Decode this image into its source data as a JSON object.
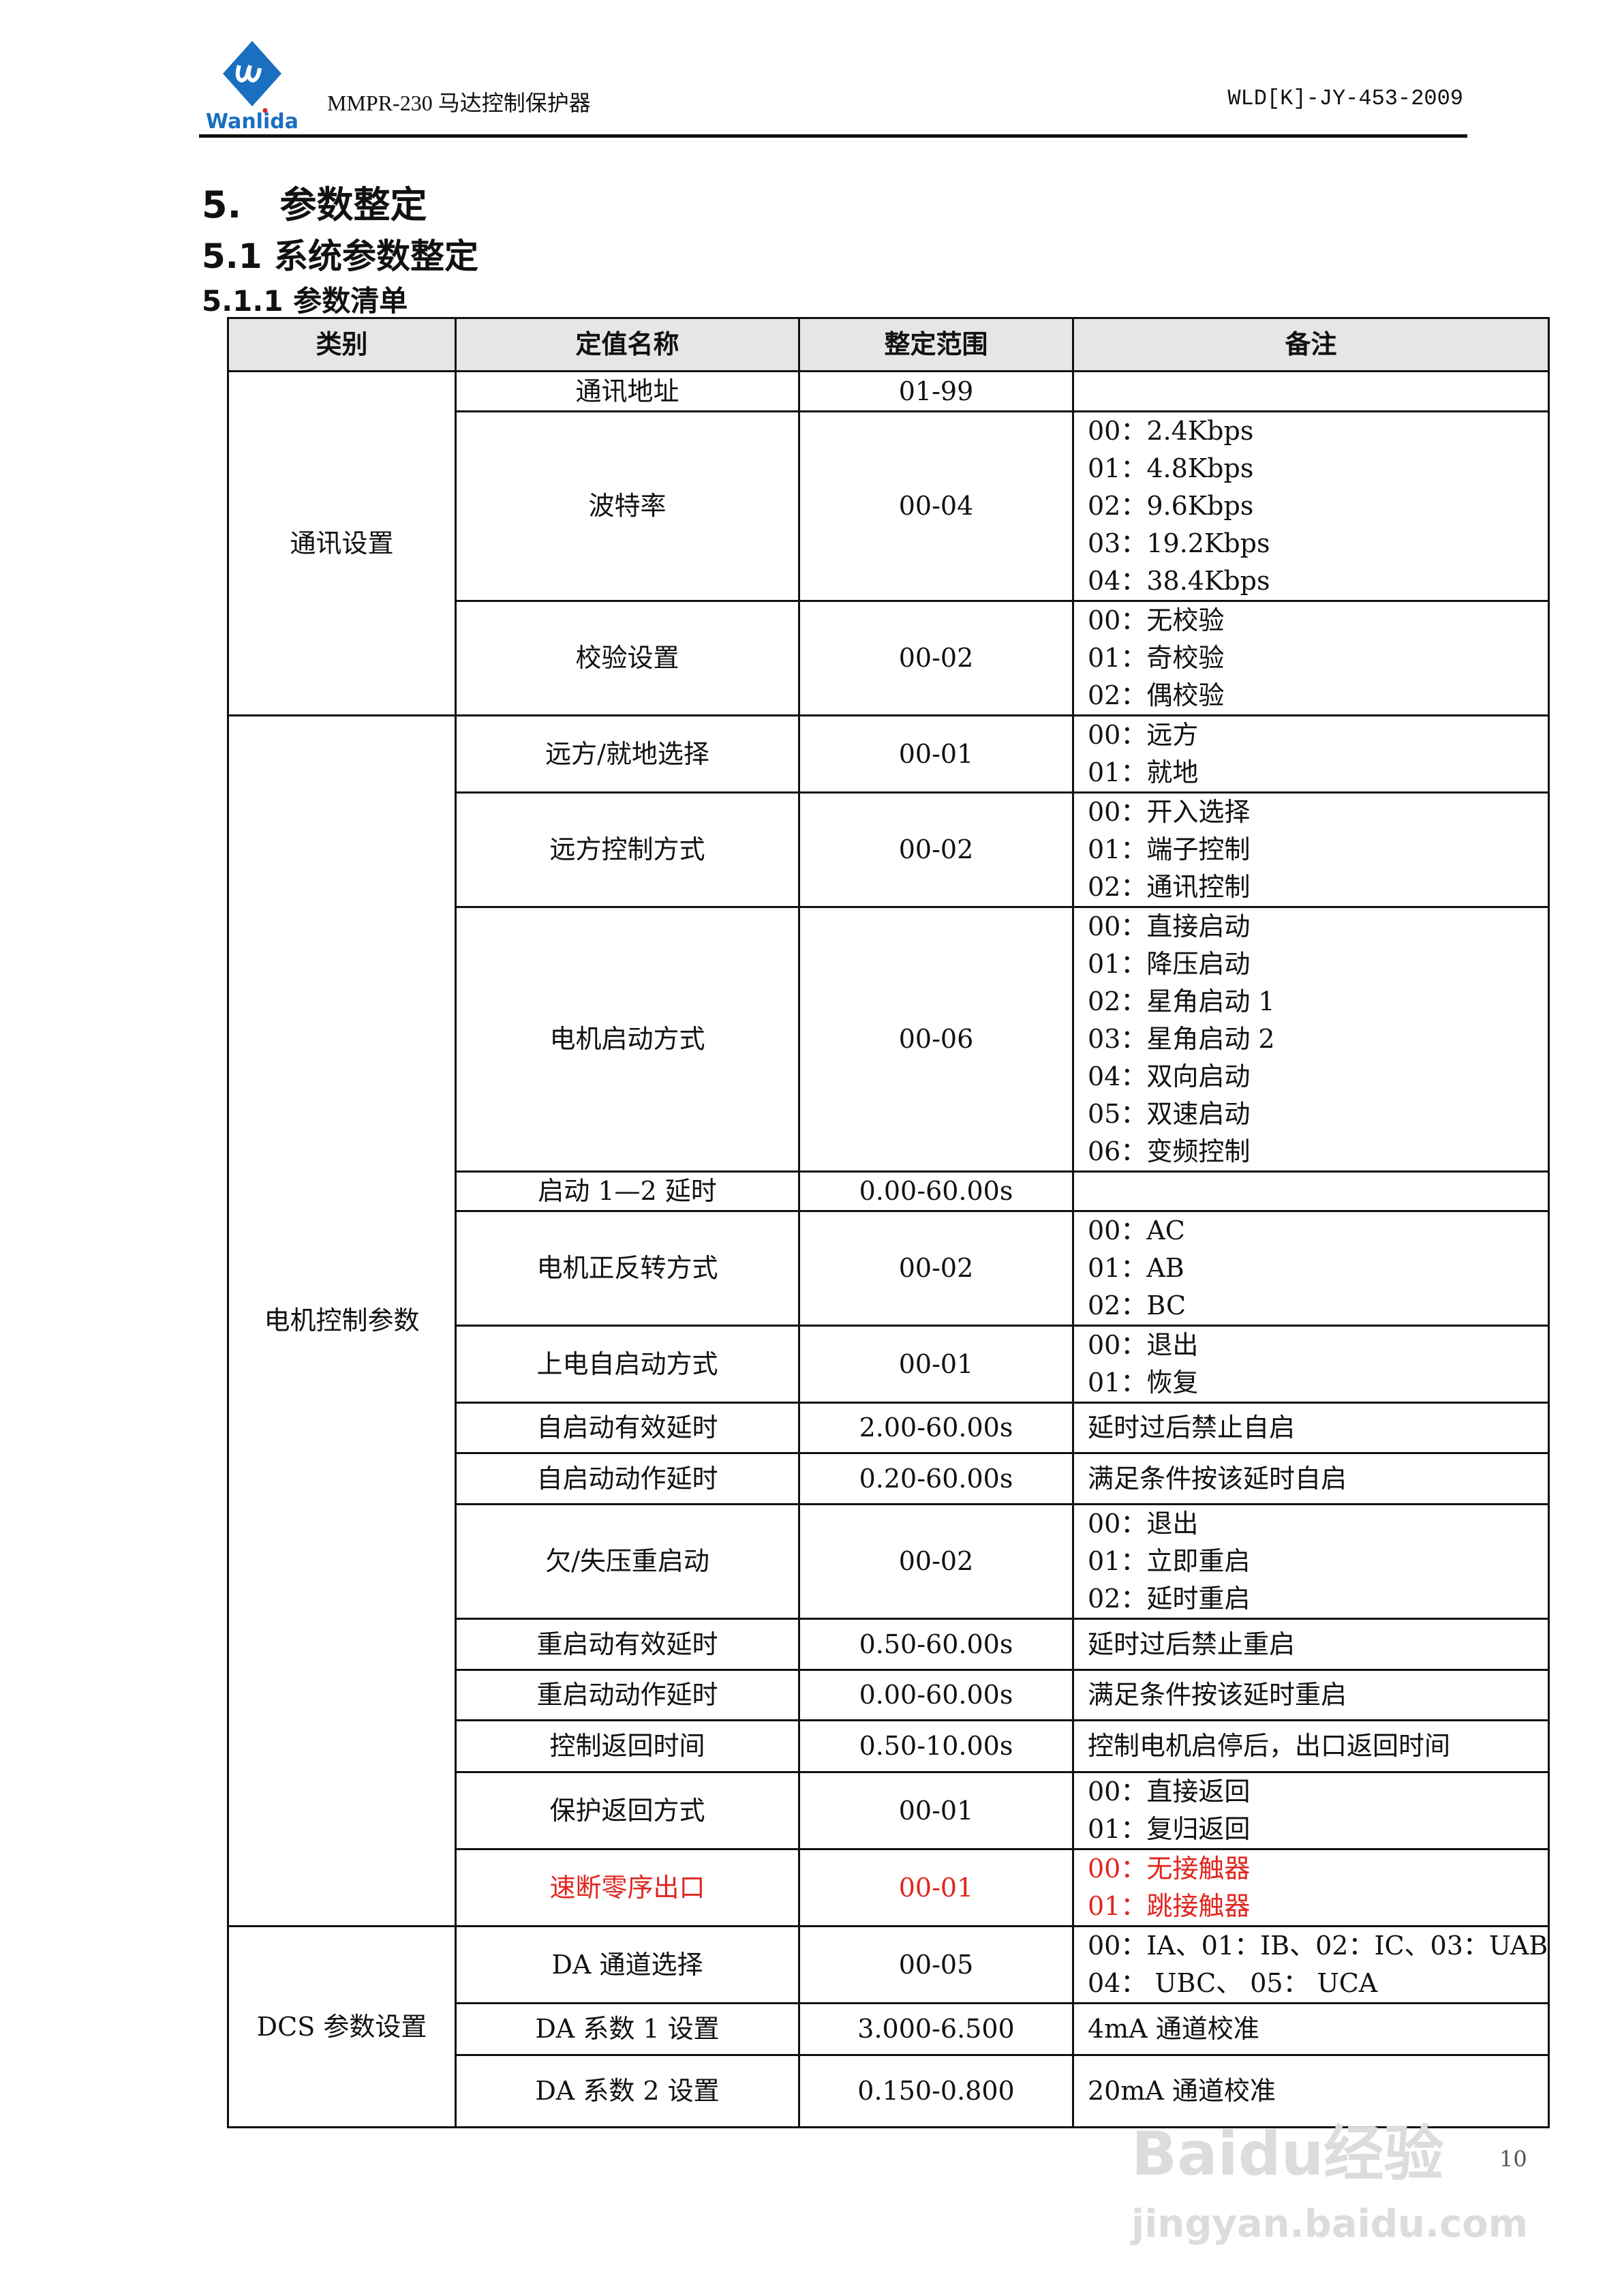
{
  "header": {
    "logo_text": "Wanlida",
    "doc_title": "MMPR-230 马达控制保护器",
    "doc_code": "WLD[K]-JY-453-2009",
    "brand_color": "#1a6fc0"
  },
  "headings": {
    "h1": "5.   参数整定",
    "h2": "5.1 系统参数整定",
    "h3": "5.1.1 参数清单"
  },
  "table": {
    "columns": [
      "类别",
      "定值名称",
      "整定范围",
      "备注"
    ],
    "groups": [
      {
        "category": "通讯设置",
        "rows": [
          {
            "name": "通讯地址",
            "range": "01-99",
            "remarks": []
          },
          {
            "name": "波特率",
            "range": "00-04",
            "remarks": [
              "00：2.4Kbps",
              "01：4.8Kbps",
              "02：9.6Kbps",
              "03：19.2Kbps",
              "04：38.4Kbps"
            ]
          },
          {
            "name": "校验设置",
            "range": "00-02",
            "remarks": [
              "00：无校验",
              "01：奇校验",
              "02：偶校验"
            ]
          }
        ]
      },
      {
        "category": "电机控制参数",
        "rows": [
          {
            "name": "远方/就地选择",
            "range": "00-01",
            "remarks": [
              "00：远方",
              "01：就地"
            ]
          },
          {
            "name": "远方控制方式",
            "range": "00-02",
            "remarks": [
              "00：开入选择",
              "01：端子控制",
              "02：通讯控制"
            ]
          },
          {
            "name": "电机启动方式",
            "range": "00-06",
            "remarks": [
              "00：直接启动",
              "01：降压启动",
              "02：星角启动 1",
              "03：星角启动 2",
              "04：双向启动",
              "05：双速启动",
              "06：变频控制"
            ]
          },
          {
            "name": "启动 1—2 延时",
            "range": "0.00-60.00s",
            "remarks": []
          },
          {
            "name": "电机正反转方式",
            "range": "00-02",
            "remarks": [
              "00：AC",
              "01：AB",
              "02：BC"
            ]
          },
          {
            "name": "上电自启动方式",
            "range": "00-01",
            "remarks": [
              "00：退出",
              "01：恢复"
            ]
          },
          {
            "name": "自启动有效延时",
            "range": "2.00-60.00s",
            "remarks": [
              "延时过后禁止自启"
            ]
          },
          {
            "name": "自启动动作延时",
            "range": "0.20-60.00s",
            "remarks": [
              "满足条件按该延时自启"
            ]
          },
          {
            "name": "欠/失压重启动",
            "range": "00-02",
            "remarks": [
              "00：退出",
              "01：立即重启",
              "02：延时重启"
            ]
          },
          {
            "name": "重启动有效延时",
            "range": "0.50-60.00s",
            "remarks": [
              "延时过后禁止重启"
            ]
          },
          {
            "name": "重启动动作延时",
            "range": "0.00-60.00s",
            "remarks": [
              "满足条件按该延时重启"
            ]
          },
          {
            "name": "控制返回时间",
            "range": "0.50-10.00s",
            "remarks": [
              "控制电机启停后，出口返回时间"
            ]
          },
          {
            "name": "保护返回方式",
            "range": "00-01",
            "remarks": [
              "00：直接返回",
              "01：复归返回"
            ]
          },
          {
            "name": "速断零序出口",
            "range": "00-01",
            "remarks": [
              "00：无接触器",
              "01：跳接触器"
            ],
            "highlight": "#e0261f"
          }
        ]
      },
      {
        "category": "DCS 参数设置",
        "rows": [
          {
            "name": "DA 通道选择",
            "range": "00-05",
            "remarks": [
              "00：IA、01：IB、02：IC、03：UAB",
              "04： UBC、 05： UCA"
            ]
          },
          {
            "name": "DA 系数 1 设置",
            "range": "3.000-6.500",
            "remarks": [
              "4mA 通道校准"
            ]
          },
          {
            "name": "DA 系数 2 设置",
            "range": "0.150-0.800",
            "remarks": [
              "20mA 通道校准"
            ]
          }
        ]
      }
    ]
  },
  "footer": {
    "page_number": "10",
    "watermark_main": "Baidu经验",
    "watermark_url": "jingyan.baidu.com"
  }
}
